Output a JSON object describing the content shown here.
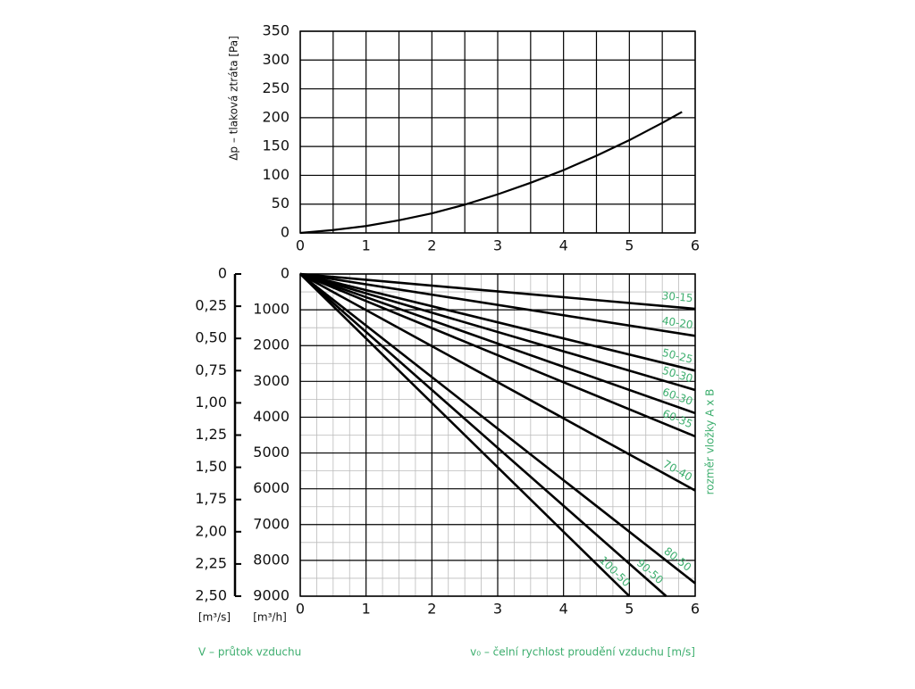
{
  "chart_data": [
    {
      "type": "line",
      "ylabel": "Δp – tlaková ztráta [Pa]",
      "x": [
        0,
        0.5,
        1,
        1.5,
        2,
        2.5,
        3,
        3.5,
        4,
        4.5,
        5,
        5.5,
        5.8
      ],
      "values": [
        0,
        5,
        12,
        22,
        34,
        49,
        67,
        87,
        109,
        134,
        161,
        191,
        210
      ],
      "color": "#000000",
      "xlim": [
        0,
        6
      ],
      "xticks": [
        0,
        1,
        2,
        3,
        4,
        5,
        6
      ],
      "ylim": [
        0,
        350
      ],
      "yticks": [
        0,
        50,
        100,
        150,
        200,
        250,
        300,
        350
      ],
      "grid": true
    },
    {
      "type": "line",
      "ylabel": "[m³/h]",
      "y2label": "[m³/s]",
      "xlabel": "v₀ – čelní rychlost proudění vzduchu [m/s]",
      "y2caption": "V – průtok vzduchu",
      "legend_title": "rozměr vložky A x B",
      "label_color": "#3dae6e",
      "y_inverted": true,
      "xlim": [
        0,
        6
      ],
      "xticks": [
        0,
        1,
        2,
        3,
        4,
        5,
        6
      ],
      "ylim": [
        0,
        9000
      ],
      "yticks": [
        0,
        1000,
        2000,
        3000,
        4000,
        5000,
        6000,
        7000,
        8000,
        9000
      ],
      "y2lim": [
        0,
        2.5
      ],
      "y2ticks": [
        0,
        {
          "value": 0.25,
          "label": "0,25"
        },
        {
          "value": 0.5,
          "label": "0,50"
        },
        {
          "value": 0.75,
          "label": "0,75"
        },
        {
          "value": 1,
          "label": "1,00"
        },
        {
          "value": 1.25,
          "label": "1,25"
        },
        {
          "value": 1.5,
          "label": "1,50"
        },
        {
          "value": 1.75,
          "label": "1,75"
        },
        {
          "value": 2,
          "label": "2,00"
        },
        {
          "value": 2.25,
          "label": "2,25"
        },
        {
          "value": 2.5,
          "label": "2,50"
        }
      ],
      "grid": true,
      "series": [
        {
          "name": "30-15",
          "color": "#000000",
          "x": [
            0,
            6
          ],
          "values": [
            0,
            972
          ]
        },
        {
          "name": "40-20",
          "color": "#000000",
          "x": [
            0,
            6
          ],
          "values": [
            0,
            1728
          ]
        },
        {
          "name": "50-25",
          "color": "#000000",
          "x": [
            0,
            6
          ],
          "values": [
            0,
            2700
          ]
        },
        {
          "name": "50-30",
          "color": "#000000",
          "x": [
            0,
            6
          ],
          "values": [
            0,
            3240
          ]
        },
        {
          "name": "60-30",
          "color": "#000000",
          "x": [
            0,
            6
          ],
          "values": [
            0,
            3888
          ]
        },
        {
          "name": "60-35",
          "color": "#000000",
          "x": [
            0,
            6
          ],
          "values": [
            0,
            4536
          ]
        },
        {
          "name": "70-40",
          "color": "#000000",
          "x": [
            0,
            6
          ],
          "values": [
            0,
            6048
          ]
        },
        {
          "name": "80-50",
          "color": "#000000",
          "x": [
            0,
            6
          ],
          "values": [
            0,
            8640
          ]
        },
        {
          "name": "90-50",
          "color": "#000000",
          "x": [
            0,
            5.56
          ],
          "values": [
            0,
            9000
          ]
        },
        {
          "name": "100-50",
          "color": "#000000",
          "x": [
            0,
            5
          ],
          "values": [
            0,
            9000
          ]
        }
      ]
    }
  ]
}
